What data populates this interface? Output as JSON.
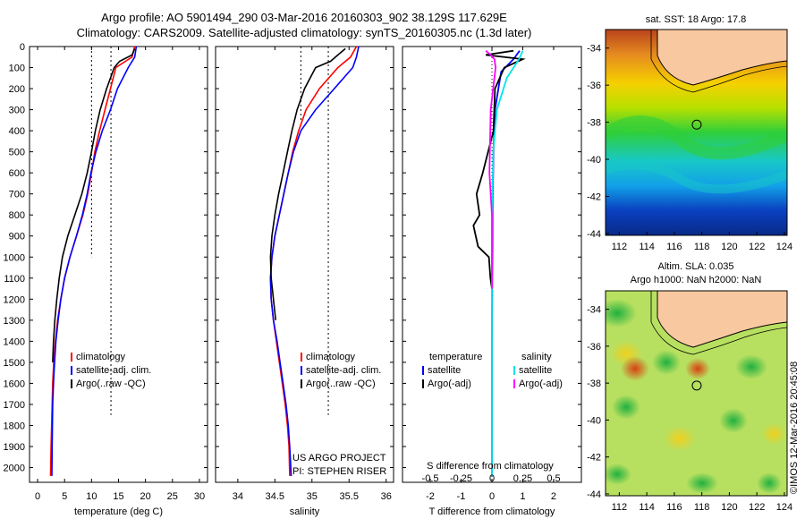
{
  "header": {
    "line1": "Argo profile: AO 5901494_290 03-Mar-2016 20160303_902 38.129S 117.629E",
    "line2": "Climatology: CARS2009. Satellite-adjusted climatology: synTS_20160305.nc (1.3d later)"
  },
  "colors": {
    "climatology": "#ff0000",
    "satellite": "#0000ff",
    "argo": "#000000",
    "salinity_sat": "#00e5e5",
    "salinity_argo": "#ff00ff"
  },
  "chart_data": [
    {
      "type": "line",
      "panel": "temperature",
      "xlabel": "temperature (deg C)",
      "xlim": [
        -1.5,
        31.5
      ],
      "xticks": [
        0,
        5,
        10,
        15,
        20,
        25,
        30
      ],
      "ylim": [
        2070,
        0
      ],
      "yticks": [
        0,
        100,
        200,
        300,
        400,
        500,
        600,
        700,
        800,
        900,
        1000,
        1100,
        1200,
        1300,
        1400,
        1500,
        1600,
        1700,
        1800,
        1900,
        2000
      ],
      "ref_lines": [
        {
          "x": 10,
          "depth": [
            0,
            1000
          ]
        },
        {
          "x": 13.6,
          "depth": [
            0,
            1750
          ]
        }
      ],
      "legend": [
        "climatology",
        "satellite-adj. clim.",
        "Argo(..raw -QC)"
      ],
      "series": [
        {
          "name": "climatology",
          "x": [
            18,
            17.5,
            14.5,
            13.5,
            12.5,
            11.5,
            10.6,
            10,
            9.3,
            8.4,
            7.2,
            6,
            5,
            4.3,
            3.7,
            3.3,
            3,
            2.8,
            2.7,
            2.6,
            2.5,
            2.4
          ],
          "y": [
            0,
            50,
            100,
            200,
            300,
            400,
            500,
            600,
            700,
            800,
            900,
            1000,
            1100,
            1200,
            1300,
            1400,
            1500,
            1600,
            1700,
            1800,
            1900,
            2040
          ]
        },
        {
          "name": "satellite-adj. clim.",
          "x": [
            18.3,
            18,
            16.8,
            14.8,
            13.5,
            12,
            10.8,
            9.9,
            9.2,
            8.3,
            7.2,
            6,
            5,
            4.3,
            3.8,
            3.4,
            3.15,
            2.95,
            2.8,
            2.75,
            2.7,
            2.65
          ],
          "y": [
            0,
            50,
            100,
            200,
            300,
            400,
            500,
            600,
            700,
            800,
            900,
            1000,
            1100,
            1200,
            1300,
            1400,
            1500,
            1600,
            1700,
            1800,
            1900,
            2040
          ]
        },
        {
          "name": "Argo(..raw -QC)",
          "x": [
            18,
            17.5,
            15.2,
            14.2,
            12.8,
            11.6,
            10.7,
            10,
            9.2,
            8.2,
            6.9,
            5.6,
            4.6,
            4,
            3.55,
            3.2,
            2.95,
            2.8
          ],
          "y": [
            10,
            40,
            70,
            100,
            200,
            300,
            400,
            500,
            600,
            700,
            800,
            900,
            1000,
            1100,
            1200,
            1300,
            1400,
            1500
          ]
        }
      ]
    },
    {
      "type": "line",
      "panel": "salinity",
      "xlabel": "salinity",
      "xlim": [
        33.7,
        36.1
      ],
      "xticks": [
        34,
        34.5,
        35,
        35.5,
        36
      ],
      "ylim": [
        2070,
        0
      ],
      "ref_lines": [
        {
          "x": 34.85,
          "depth": [
            0,
            360
          ]
        },
        {
          "x": 35.22,
          "depth": [
            0,
            1750
          ]
        }
      ],
      "legend": [
        "climatology",
        "satellite-adj. clim.",
        "Argo(..raw -QC)"
      ],
      "annotations": [
        "US ARGO PROJECT",
        "PI: STEPHEN RISER"
      ],
      "series": [
        {
          "name": "climatology",
          "x": [
            35.6,
            35.52,
            35.35,
            35.1,
            34.92,
            34.82,
            34.74,
            34.68,
            34.62,
            34.56,
            34.5,
            34.46,
            34.44,
            34.45,
            34.48,
            34.52,
            34.56,
            34.6,
            34.64,
            34.67,
            34.69,
            34.7
          ],
          "y": [
            0,
            50,
            100,
            200,
            300,
            400,
            500,
            600,
            700,
            800,
            900,
            1000,
            1100,
            1200,
            1300,
            1400,
            1500,
            1600,
            1700,
            1800,
            1900,
            2040
          ]
        },
        {
          "name": "satellite-adj. clim.",
          "x": [
            35.63,
            35.6,
            35.55,
            35.3,
            35.05,
            34.85,
            34.75,
            34.68,
            34.62,
            34.56,
            34.5,
            34.46,
            34.44,
            34.45,
            34.48,
            34.53,
            34.57,
            34.61,
            34.65,
            34.68,
            34.7,
            34.72
          ],
          "y": [
            0,
            50,
            100,
            200,
            300,
            400,
            500,
            600,
            700,
            800,
            900,
            1000,
            1100,
            1200,
            1300,
            1400,
            1500,
            1600,
            1700,
            1800,
            1900,
            2040
          ]
        },
        {
          "name": "Argo(..raw -QC)",
          "x": [
            35.45,
            35.35,
            35.25,
            35.05,
            34.9,
            34.8,
            34.73,
            34.67,
            34.61,
            34.55,
            34.5,
            34.46,
            34.44,
            34.45,
            34.48,
            34.51
          ],
          "y": [
            10,
            40,
            70,
            100,
            200,
            300,
            400,
            500,
            600,
            700,
            800,
            900,
            1000,
            1100,
            1200,
            1300
          ]
        }
      ]
    },
    {
      "type": "line",
      "panel": "difference",
      "xlabel": "T difference from climatology",
      "xlabel_top": "S difference from climatology",
      "xlim": [
        -2.9,
        2.9
      ],
      "xticks": [
        -2,
        -1,
        0,
        1,
        2
      ],
      "xticks_s": [
        -0.5,
        -0.25,
        0,
        0.25,
        0.5
      ],
      "ylim": [
        2070,
        0
      ],
      "legend_temperature": [
        "temperature",
        "satellite",
        "Argo(-adj)"
      ],
      "legend_salinity": [
        "salinity",
        "satellite",
        "Argo(-adj)"
      ],
      "series": [
        {
          "name": "T satellite",
          "x": [
            0.9,
            0.7,
            0.3,
            0.1,
            0.05,
            0.03,
            0.02,
            0.01,
            0,
            0,
            0
          ],
          "y": [
            20,
            60,
            120,
            300,
            500,
            700,
            900,
            1100,
            1400,
            1700,
            2040
          ]
        },
        {
          "name": "T Argo(-adj)",
          "x": [
            0.7,
            -0.2,
            1.0,
            0.4,
            0.1,
            0.05,
            -0.3,
            -0.5,
            -0.4,
            -0.6,
            -0.45,
            -0.1,
            -0.05,
            0
          ],
          "y": [
            20,
            40,
            60,
            100,
            200,
            400,
            600,
            700,
            800,
            850,
            950,
            1000,
            1100,
            1150
          ]
        },
        {
          "name": "S satellite",
          "x": [
            0.25,
            0.22,
            0.12,
            0.04,
            0.01,
            0.005,
            0,
            0,
            0
          ],
          "y": [
            20,
            60,
            150,
            300,
            500,
            700,
            1000,
            1500,
            2040
          ]
        },
        {
          "name": "S Argo(-adj)",
          "x": [
            -0.05,
            -0.01,
            0.02,
            0.03,
            -0.01,
            -0.02,
            0,
            0,
            0
          ],
          "y": [
            20,
            40,
            60,
            100,
            300,
            600,
            800,
            1000,
            1150
          ]
        }
      ]
    }
  ],
  "maps": {
    "top": {
      "title": "sat. SST: 18 Argo: 17.8",
      "xticks": [
        112,
        114,
        116,
        118,
        120,
        122,
        124
      ],
      "yticks": [
        -34,
        -36,
        -38,
        -40,
        -42,
        -44
      ],
      "argo_position": [
        117.629,
        -38.129
      ]
    },
    "bottom": {
      "title1": "Altim. SLA: 0.035",
      "title2": "Argo h1000: NaN h2000: NaN",
      "xticks": [
        112,
        114,
        116,
        118,
        120,
        122,
        124
      ],
      "yticks": [
        -34,
        -36,
        -38,
        -40,
        -42,
        -44
      ],
      "argo_position": [
        117.629,
        -38.129
      ]
    }
  },
  "footer": {
    "stamp": "©IMOS 12-Mar-2016 20:45:08"
  }
}
